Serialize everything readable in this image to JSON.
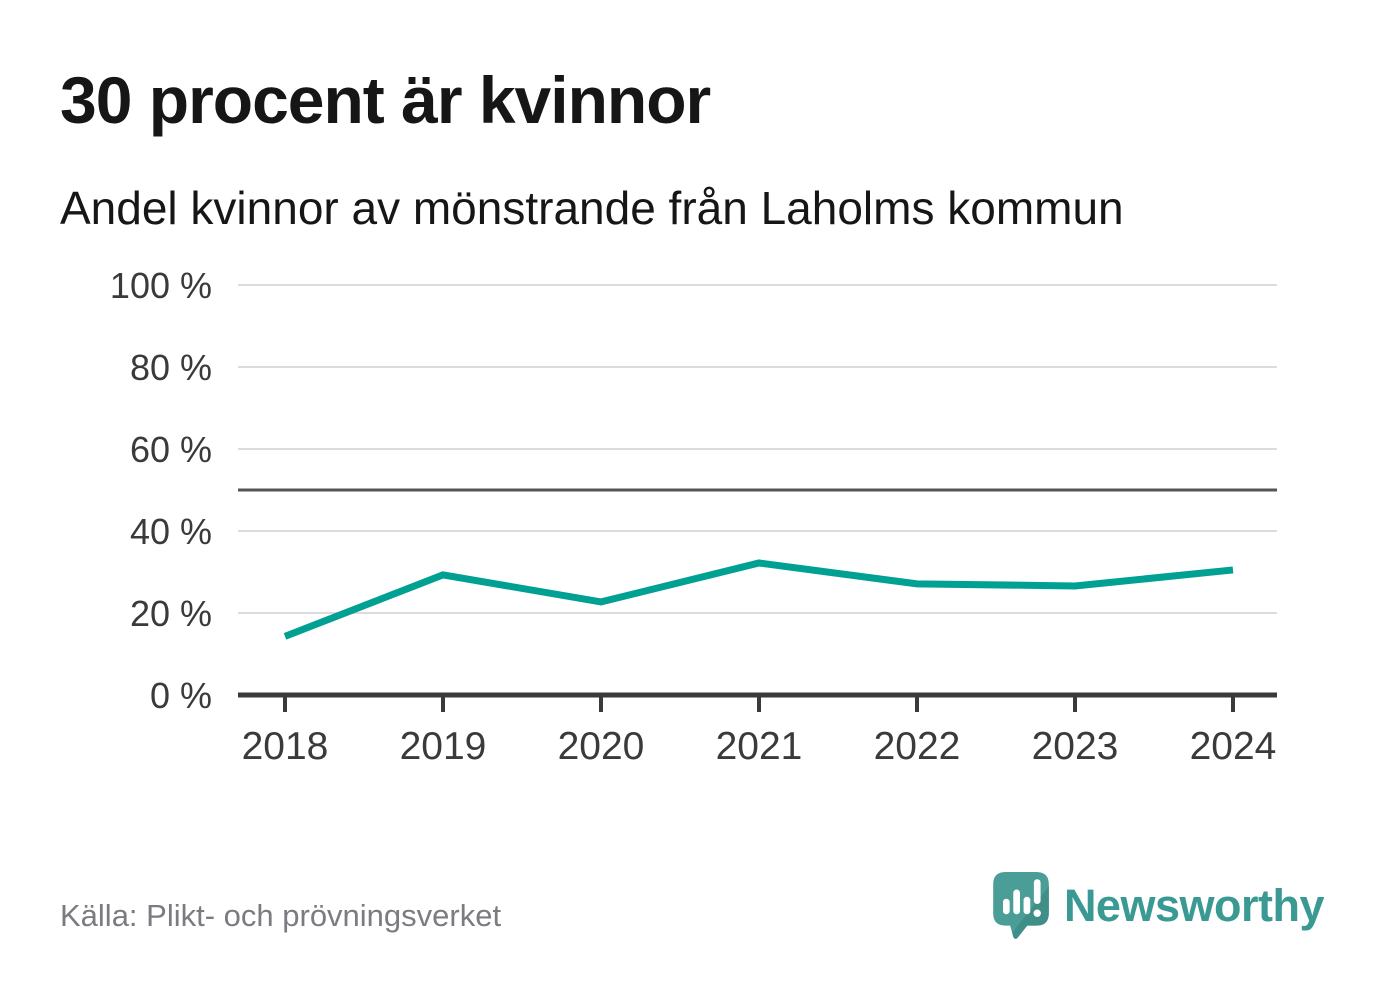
{
  "header": {
    "title": "30 procent är kvinnor",
    "subtitle": "Andel kvinnor av mönstrande från Laholms kommun"
  },
  "chart_data": {
    "type": "line",
    "title": "30 procent är kvinnor",
    "subtitle": "Andel kvinnor av mönstrande från Laholms kommun",
    "x": [
      "2018",
      "2019",
      "2020",
      "2021",
      "2022",
      "2023",
      "2024"
    ],
    "series": [
      {
        "name": "Andel kvinnor av mönstrande",
        "values": [
          14.3,
          29.3,
          22.7,
          32.2,
          27.1,
          26.6,
          30.5
        ],
        "color": "#00a092"
      }
    ],
    "ylim": [
      0,
      100
    ],
    "yticks": [
      0,
      20,
      40,
      60,
      80,
      100
    ],
    "ytick_suffix": " %",
    "reference_line": 50,
    "grid": "horizontal",
    "legend": "none"
  },
  "footer": {
    "source": "Källa: Plikt- och prövningsverket",
    "brand": "Newsworthy"
  },
  "colors": {
    "line": "#00a092",
    "grid": "#dcdcdc",
    "reference": "#555555",
    "axis": "#3a3a3a",
    "brand_teal": "#3a9a93",
    "logo_fill": "#4a9e97",
    "logo_shade": "#3f8f88",
    "source_text": "#7b7b82"
  }
}
